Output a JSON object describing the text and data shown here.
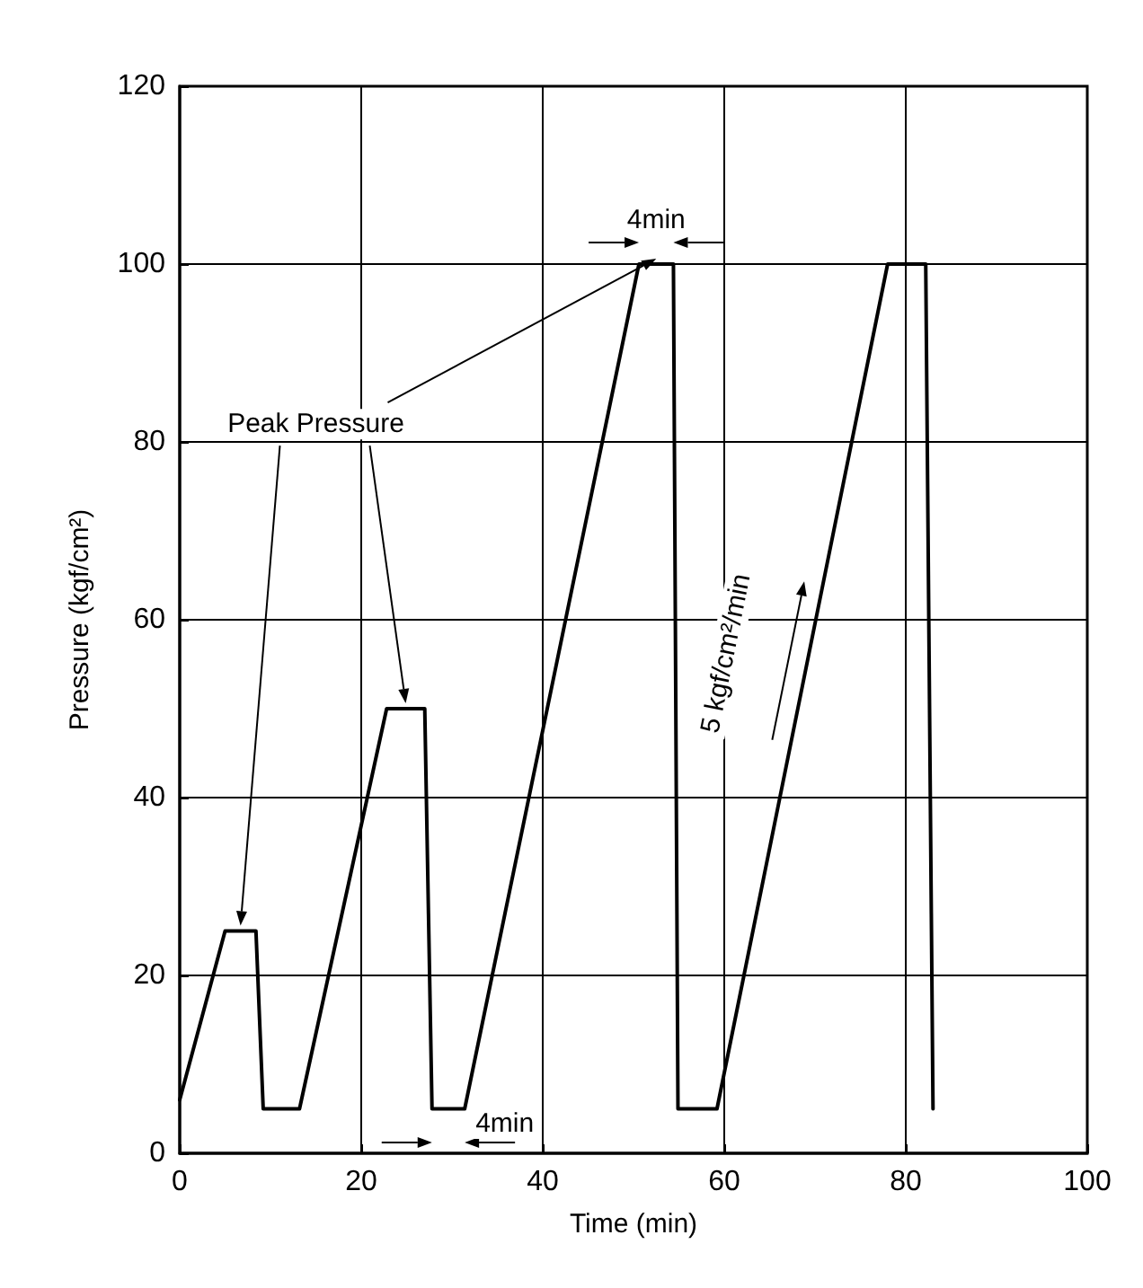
{
  "chart_data": {
    "type": "line",
    "xlabel": "Time (min)",
    "ylabel": "Pressure (kgf/cm²)",
    "x": [
      0,
      5,
      8.4,
      9.2,
      13.2,
      22.8,
      27,
      27.8,
      31.4,
      50.6,
      54.4,
      54.9,
      59.2,
      78,
      82.2,
      83
    ],
    "series": [
      {
        "color": "#000000",
        "values": [
          6,
          25,
          25,
          5,
          5,
          50,
          50,
          5,
          5,
          100,
          100,
          5,
          5,
          100,
          100,
          5
        ]
      }
    ],
    "xlim": [
      0,
      100
    ],
    "xticks": [
      0,
      20,
      40,
      60,
      80,
      100
    ],
    "ylim": [
      0,
      120
    ],
    "yticks": [
      0,
      20,
      40,
      60,
      80,
      100,
      120
    ],
    "grid": true,
    "marker": "none",
    "line_style": "solid",
    "annotations": [
      {
        "text": "Peak Pressure",
        "x": 52.5,
        "y": 100
      },
      {
        "text": "4min",
        "x": 52.5,
        "y": 100
      },
      {
        "text": "4min",
        "x": 29.6,
        "y": 5
      },
      {
        "text": "5 kgf/cm²/min",
        "x": 68,
        "y": 55
      }
    ]
  }
}
